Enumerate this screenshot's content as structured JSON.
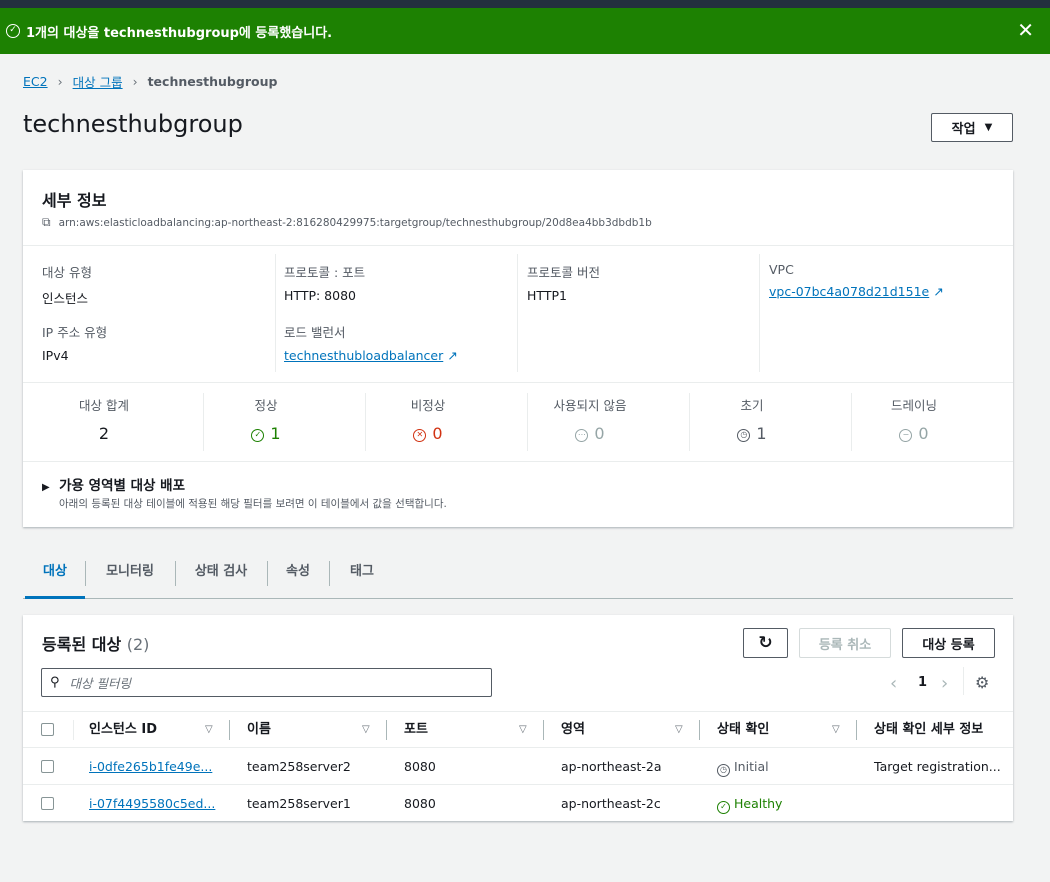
{
  "flash": {
    "message": "1개의 대상을 technesthubgroup에 등록했습니다.",
    "color": "#1d8102"
  },
  "breadcrumb": [
    "EC2",
    "대상 그룹",
    "technesthubgroup"
  ],
  "title": "technesthubgroup",
  "actions_label": "작업",
  "details": {
    "heading": "세부 정보",
    "arn": "arn:aws:elasticloadbalancing:ap-northeast-2:816280429975:targetgroup/technesthubgroup/20d8ea4bb3dbdb1b",
    "fields": [
      {
        "label": "대상 유형",
        "value": "인스턴스"
      },
      {
        "label": "프로토콜 : 포트",
        "value": "HTTP: 8080"
      },
      {
        "label": "프로토콜 버전",
        "value": "HTTP1"
      },
      {
        "label": "VPC",
        "value": "vpc-07bc4a078d21d151e"
      },
      {
        "label": "IP 주소 유형",
        "value": "IPv4"
      },
      {
        "label": "로드 밸런서",
        "value": "technesthubloadbalancer"
      }
    ],
    "stats": [
      {
        "label": "대상 합계",
        "value": "2",
        "icon": "",
        "color": "#16191f"
      },
      {
        "label": "정상",
        "value": "1",
        "icon": "✓",
        "color": "#1d8102"
      },
      {
        "label": "비정상",
        "value": "0",
        "icon": "✕",
        "color": "#d13212"
      },
      {
        "label": "사용되지 않음",
        "value": "0",
        "icon": "⋯",
        "color": "#95a5a6"
      },
      {
        "label": "초기",
        "value": "1",
        "icon": "◷",
        "color": "#545b64"
      },
      {
        "label": "드레이닝",
        "value": "0",
        "icon": "−",
        "color": "#95a5a6"
      }
    ],
    "az_title": "가용 영역별 대상 배포",
    "az_desc": "아래의 등록된 대상 테이블에 적용된 해당 필터를 보려면 이 테이블에서 값을 선택합니다."
  },
  "tabs": [
    "대상",
    "모니터링",
    "상태 검사",
    "속성",
    "태그"
  ],
  "targets": {
    "heading": "등록된 대상",
    "count": "(2)",
    "deregister": "등록 취소",
    "register": "대상 등록",
    "filter_placeholder": "대상 필터링",
    "page": "1",
    "columns": [
      "인스턴스 ID",
      "이름",
      "포트",
      "영역",
      "상태 확인",
      "상태 확인 세부 정보"
    ],
    "rows": [
      {
        "id": "i-0dfe265b1fe49e...",
        "name": "team258server2",
        "port": "8080",
        "zone": "ap-northeast-2a",
        "status": "Initial",
        "status_color": "#545b64",
        "status_icon": "◷",
        "details": "Target registration..."
      },
      {
        "id": "i-07f4495580c5ed...",
        "name": "team258server1",
        "port": "8080",
        "zone": "ap-northeast-2c",
        "status": "Healthy",
        "status_color": "#1d8102",
        "status_icon": "✓",
        "details": ""
      }
    ]
  }
}
